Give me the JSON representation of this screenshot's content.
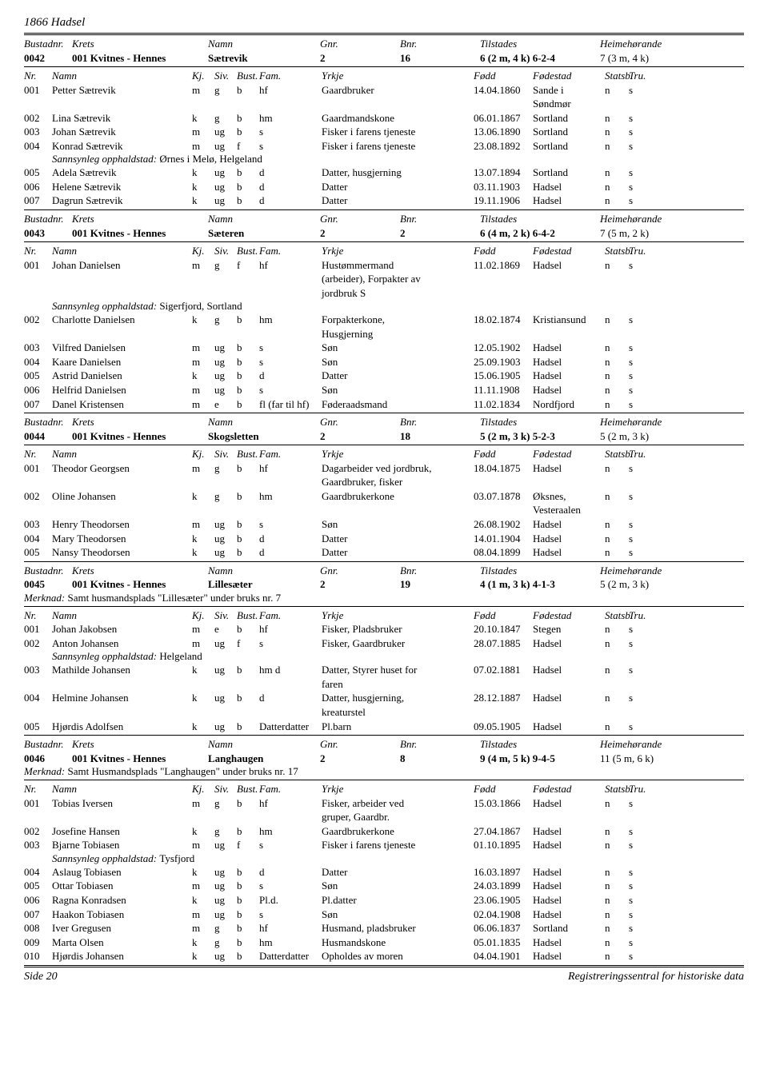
{
  "page_title": "1866 Hadsel",
  "footer_left": "Side 20",
  "footer_right": "Registreringssentral for historiske data",
  "labels": {
    "bustadnr": "Bustadnr.",
    "krets": "Krets",
    "namn": "Namn",
    "gnr": "Gnr.",
    "bnr": "Bnr.",
    "tilstades": "Tilstades",
    "heime": "Heimehørande",
    "nr": "Nr.",
    "kj": "Kj.",
    "siv": "Siv.",
    "bust": "Bust.",
    "fam": "Fam.",
    "yrkje": "Yrkje",
    "fodd": "Fødd",
    "fodestad": "Fødestad",
    "statsb": "Statsb.",
    "tru": "Tru.",
    "sannsynleg": "Sannsynleg opphaldstad:",
    "merknad": "Merknad:"
  },
  "households": [
    {
      "bustadnr": "0042",
      "krets": "001 Kvitnes - Hennes",
      "namn": "Sætrevik",
      "gnr": "2",
      "bnr": "16",
      "tilstades": "6 (2 m, 4 k) 6-2-4",
      "heime": "7 (3 m, 4 k)",
      "persons": [
        {
          "nr": "001",
          "namn": "Petter Sætrevik",
          "kj": "m",
          "siv": "g",
          "bust": "b",
          "fam": "hf",
          "yrkje": "Gaardbruker",
          "fodd": "14.04.1860",
          "fodestad": "Sande i\nSøndmør",
          "statsb": "n",
          "tru": "s"
        },
        {
          "nr": "002",
          "namn": "Lina Sætrevik",
          "kj": "k",
          "siv": "g",
          "bust": "b",
          "fam": "hm",
          "yrkje": "Gaardmandskone",
          "fodd": "06.01.1867",
          "fodestad": "Sortland",
          "statsb": "n",
          "tru": "s"
        },
        {
          "nr": "003",
          "namn": "Johan Sætrevik",
          "kj": "m",
          "siv": "ug",
          "bust": "b",
          "fam": "s",
          "yrkje": "Fisker i farens tjeneste",
          "fodd": "13.06.1890",
          "fodestad": "Sortland",
          "statsb": "n",
          "tru": "s"
        },
        {
          "nr": "004",
          "namn": "Konrad Sætrevik",
          "kj": "m",
          "siv": "ug",
          "bust": "f",
          "fam": "s",
          "yrkje": "Fisker i farens tjeneste",
          "fodd": "23.08.1892",
          "fodestad": "Sortland",
          "statsb": "n",
          "tru": "s",
          "sannsynleg": "Ørnes i Melø, Helgeland"
        },
        {
          "nr": "005",
          "namn": "Adela Sætrevik",
          "kj": "k",
          "siv": "ug",
          "bust": "b",
          "fam": "d",
          "yrkje": "Datter, husgjerning",
          "fodd": "13.07.1894",
          "fodestad": "Sortland",
          "statsb": "n",
          "tru": "s"
        },
        {
          "nr": "006",
          "namn": "Helene Sætrevik",
          "kj": "k",
          "siv": "ug",
          "bust": "b",
          "fam": "d",
          "yrkje": "Datter",
          "fodd": "03.11.1903",
          "fodestad": "Hadsel",
          "statsb": "n",
          "tru": "s"
        },
        {
          "nr": "007",
          "namn": "Dagrun Sætrevik",
          "kj": "k",
          "siv": "ug",
          "bust": "b",
          "fam": "d",
          "yrkje": "Datter",
          "fodd": "19.11.1906",
          "fodestad": "Hadsel",
          "statsb": "n",
          "tru": "s"
        }
      ]
    },
    {
      "bustadnr": "0043",
      "krets": "001 Kvitnes - Hennes",
      "namn": "Sæteren",
      "gnr": "2",
      "bnr": "2",
      "tilstades": "6 (4 m, 2 k) 6-4-2",
      "heime": "7 (5 m, 2 k)",
      "persons": [
        {
          "nr": "001",
          "namn": "Johan Danielsen",
          "kj": "m",
          "siv": "g",
          "bust": "f",
          "fam": "hf",
          "yrkje": "Hustømmermand\n(arbeider), Forpakter av\njordbruk S",
          "fodd": "11.02.1869",
          "fodestad": "Hadsel",
          "statsb": "n",
          "tru": "s",
          "sannsynleg": "Sigerfjord, Sortland"
        },
        {
          "nr": "002",
          "namn": "Charlotte Danielsen",
          "kj": "k",
          "siv": "g",
          "bust": "b",
          "fam": "hm",
          "yrkje": "Forpakterkone,\nHusgjerning",
          "fodd": "18.02.1874",
          "fodestad": "Kristiansund",
          "statsb": "n",
          "tru": "s"
        },
        {
          "nr": "003",
          "namn": "Vilfred Danielsen",
          "kj": "m",
          "siv": "ug",
          "bust": "b",
          "fam": "s",
          "yrkje": "Søn",
          "fodd": "12.05.1902",
          "fodestad": "Hadsel",
          "statsb": "n",
          "tru": "s"
        },
        {
          "nr": "004",
          "namn": "Kaare Danielsen",
          "kj": "m",
          "siv": "ug",
          "bust": "b",
          "fam": "s",
          "yrkje": "Søn",
          "fodd": "25.09.1903",
          "fodestad": "Hadsel",
          "statsb": "n",
          "tru": "s"
        },
        {
          "nr": "005",
          "namn": "Astrid Danielsen",
          "kj": "k",
          "siv": "ug",
          "bust": "b",
          "fam": "d",
          "yrkje": "Datter",
          "fodd": "15.06.1905",
          "fodestad": "Hadsel",
          "statsb": "n",
          "tru": "s"
        },
        {
          "nr": "006",
          "namn": "Helfrid Danielsen",
          "kj": "m",
          "siv": "ug",
          "bust": "b",
          "fam": "s",
          "yrkje": "Søn",
          "fodd": "11.11.1908",
          "fodestad": "Hadsel",
          "statsb": "n",
          "tru": "s"
        },
        {
          "nr": "007",
          "namn": "Danel Kristensen",
          "kj": "m",
          "siv": "e",
          "bust": "b",
          "fam": "fl (far til hf)",
          "yrkje": "Føderaadsmand",
          "fodd": "11.02.1834",
          "fodestad": "Nordfjord",
          "statsb": "n",
          "tru": "s"
        }
      ]
    },
    {
      "bustadnr": "0044",
      "krets": "001 Kvitnes - Hennes",
      "namn": "Skogsletten",
      "gnr": "2",
      "bnr": "18",
      "tilstades": "5 (2 m, 3 k) 5-2-3",
      "heime": "5 (2 m, 3 k)",
      "persons": [
        {
          "nr": "001",
          "namn": "Theodor Georgsen",
          "kj": "m",
          "siv": "g",
          "bust": "b",
          "fam": "hf",
          "yrkje": "Dagarbeider ved jordbruk,\nGaardbruker, fisker",
          "fodd": "18.04.1875",
          "fodestad": "Hadsel",
          "statsb": "n",
          "tru": "s"
        },
        {
          "nr": "002",
          "namn": "Oline Johansen",
          "kj": "k",
          "siv": "g",
          "bust": "b",
          "fam": "hm",
          "yrkje": "Gaardbrukerkone",
          "fodd": "03.07.1878",
          "fodestad": "Øksnes,\nVesteraalen",
          "statsb": "n",
          "tru": "s"
        },
        {
          "nr": "003",
          "namn": "Henry Theodorsen",
          "kj": "m",
          "siv": "ug",
          "bust": "b",
          "fam": "s",
          "yrkje": "Søn",
          "fodd": "26.08.1902",
          "fodestad": "Hadsel",
          "statsb": "n",
          "tru": "s"
        },
        {
          "nr": "004",
          "namn": "Mary Theodorsen",
          "kj": "k",
          "siv": "ug",
          "bust": "b",
          "fam": "d",
          "yrkje": "Datter",
          "fodd": "14.01.1904",
          "fodestad": "Hadsel",
          "statsb": "n",
          "tru": "s"
        },
        {
          "nr": "005",
          "namn": "Nansy Theodorsen",
          "kj": "k",
          "siv": "ug",
          "bust": "b",
          "fam": "d",
          "yrkje": "Datter",
          "fodd": "08.04.1899",
          "fodestad": "Hadsel",
          "statsb": "n",
          "tru": "s"
        }
      ]
    },
    {
      "bustadnr": "0045",
      "krets": "001 Kvitnes - Hennes",
      "namn": "Lillesæter",
      "gnr": "2",
      "bnr": "19",
      "tilstades": "4 (1 m, 3 k) 4-1-3",
      "heime": "5 (2 m, 3 k)",
      "merknad": "Samt husmandsplads \"Lillesæter\" under bruks nr. 7",
      "persons": [
        {
          "nr": "001",
          "namn": "Johan Jakobsen",
          "kj": "m",
          "siv": "e",
          "bust": "b",
          "fam": "hf",
          "yrkje": "Fisker, Pladsbruker",
          "fodd": "20.10.1847",
          "fodestad": "Stegen",
          "statsb": "n",
          "tru": "s"
        },
        {
          "nr": "002",
          "namn": "Anton Johansen",
          "kj": "m",
          "siv": "ug",
          "bust": "f",
          "fam": "s",
          "yrkje": "Fisker, Gaardbruker",
          "fodd": "28.07.1885",
          "fodestad": "Hadsel",
          "statsb": "n",
          "tru": "s",
          "sannsynleg": "Helgeland"
        },
        {
          "nr": "003",
          "namn": "Mathilde Johansen",
          "kj": "k",
          "siv": "ug",
          "bust": "b",
          "fam": "hm d",
          "yrkje": "Datter, Styrer huset for\nfaren",
          "fodd": "07.02.1881",
          "fodestad": "Hadsel",
          "statsb": "n",
          "tru": "s"
        },
        {
          "nr": "004",
          "namn": "Helmine Johansen",
          "kj": "k",
          "siv": "ug",
          "bust": "b",
          "fam": "d",
          "yrkje": "Datter, husgjerning,\nkreaturstel",
          "fodd": "28.12.1887",
          "fodestad": "Hadsel",
          "statsb": "n",
          "tru": "s"
        },
        {
          "nr": "005",
          "namn": "Hjørdis Adolfsen",
          "kj": "k",
          "siv": "ug",
          "bust": "b",
          "fam": "Datterdatter",
          "yrkje": "Pl.barn",
          "fodd": "09.05.1905",
          "fodestad": "Hadsel",
          "statsb": "n",
          "tru": "s"
        }
      ]
    },
    {
      "bustadnr": "0046",
      "krets": "001 Kvitnes - Hennes",
      "namn": "Langhaugen",
      "gnr": "2",
      "bnr": "8",
      "tilstades": "9 (4 m, 5 k) 9-4-5",
      "heime": "11 (5 m, 6 k)",
      "merknad": "Samt Husmandsplads \"Langhaugen\" under bruks nr. 17",
      "persons": [
        {
          "nr": "001",
          "namn": "Tobias Iversen",
          "kj": "m",
          "siv": "g",
          "bust": "b",
          "fam": "hf",
          "yrkje": "Fisker, arbeider ved\ngruper, Gaardbr.",
          "fodd": "15.03.1866",
          "fodestad": "Hadsel",
          "statsb": "n",
          "tru": "s"
        },
        {
          "nr": "002",
          "namn": "Josefine Hansen",
          "kj": "k",
          "siv": "g",
          "bust": "b",
          "fam": "hm",
          "yrkje": "Gaardbrukerkone",
          "fodd": "27.04.1867",
          "fodestad": "Hadsel",
          "statsb": "n",
          "tru": "s"
        },
        {
          "nr": "003",
          "namn": "Bjarne Tobiasen",
          "kj": "m",
          "siv": "ug",
          "bust": "f",
          "fam": "s",
          "yrkje": "Fisker i farens tjeneste",
          "fodd": "01.10.1895",
          "fodestad": "Hadsel",
          "statsb": "n",
          "tru": "s",
          "sannsynleg": "Tysfjord"
        },
        {
          "nr": "004",
          "namn": "Aslaug Tobiasen",
          "kj": "k",
          "siv": "ug",
          "bust": "b",
          "fam": "d",
          "yrkje": "Datter",
          "fodd": "16.03.1897",
          "fodestad": "Hadsel",
          "statsb": "n",
          "tru": "s"
        },
        {
          "nr": "005",
          "namn": "Ottar Tobiasen",
          "kj": "m",
          "siv": "ug",
          "bust": "b",
          "fam": "s",
          "yrkje": "Søn",
          "fodd": "24.03.1899",
          "fodestad": "Hadsel",
          "statsb": "n",
          "tru": "s"
        },
        {
          "nr": "006",
          "namn": "Ragna Konradsen",
          "kj": "k",
          "siv": "ug",
          "bust": "b",
          "fam": "Pl.d.",
          "yrkje": "Pl.datter",
          "fodd": "23.06.1905",
          "fodestad": "Hadsel",
          "statsb": "n",
          "tru": "s"
        },
        {
          "nr": "007",
          "namn": "Haakon Tobiasen",
          "kj": "m",
          "siv": "ug",
          "bust": "b",
          "fam": "s",
          "yrkje": "Søn",
          "fodd": "02.04.1908",
          "fodestad": "Hadsel",
          "statsb": "n",
          "tru": "s"
        },
        {
          "nr": "008",
          "namn": "Iver Gregusen",
          "kj": "m",
          "siv": "g",
          "bust": "b",
          "fam": "hf",
          "yrkje": "Husmand, pladsbruker",
          "fodd": "06.06.1837",
          "fodestad": "Sortland",
          "statsb": "n",
          "tru": "s"
        },
        {
          "nr": "009",
          "namn": "Marta Olsen",
          "kj": "k",
          "siv": "g",
          "bust": "b",
          "fam": "hm",
          "yrkje": "Husmandskone",
          "fodd": "05.01.1835",
          "fodestad": "Hadsel",
          "statsb": "n",
          "tru": "s"
        },
        {
          "nr": "010",
          "namn": "Hjørdis Johansen",
          "kj": "k",
          "siv": "ug",
          "bust": "b",
          "fam": "Datterdatter",
          "yrkje": "Opholdes av moren",
          "fodd": "04.04.1901",
          "fodestad": "Hadsel",
          "statsb": "n",
          "tru": "s"
        }
      ]
    }
  ]
}
